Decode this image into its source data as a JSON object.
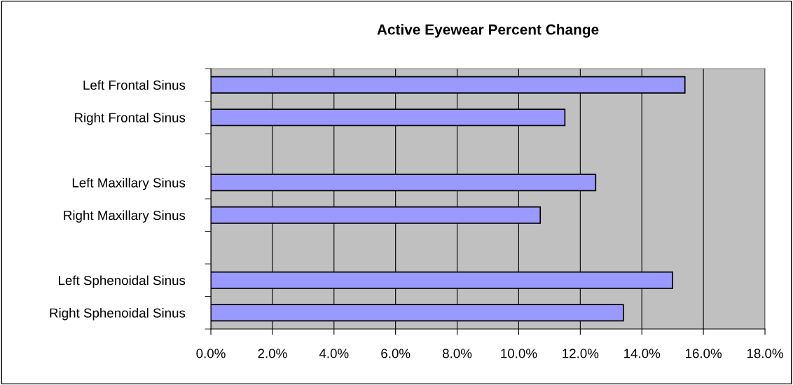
{
  "chart_data": {
    "type": "bar",
    "orientation": "horizontal",
    "title": "Active Eyewear Percent Change",
    "categories": [
      "Left Frontal Sinus",
      "Right Frontal Sinus",
      null,
      "Left Maxillary Sinus",
      "Right Maxillary Sinus",
      null,
      "Left Sphenoidal Sinus",
      "Right Sphenoidal Sinus"
    ],
    "values": [
      15.4,
      11.5,
      null,
      12.5,
      10.7,
      null,
      15.0,
      13.4
    ],
    "color": "#9999ff",
    "xlim": [
      0,
      18
    ],
    "xticks": [
      {
        "value": 0,
        "label": "0.0%"
      },
      {
        "value": 2,
        "label": "2.0%"
      },
      {
        "value": 4,
        "label": "4.0%"
      },
      {
        "value": 6,
        "label": "6.0%"
      },
      {
        "value": 8,
        "label": "8.0%"
      },
      {
        "value": 10,
        "label": "10.0%"
      },
      {
        "value": 12,
        "label": "12.0%"
      },
      {
        "value": 14,
        "label": "14.0%"
      },
      {
        "value": 16,
        "label": "16.0%"
      },
      {
        "value": 18,
        "label": "18.0%"
      }
    ],
    "grid": "x",
    "legend": false
  }
}
